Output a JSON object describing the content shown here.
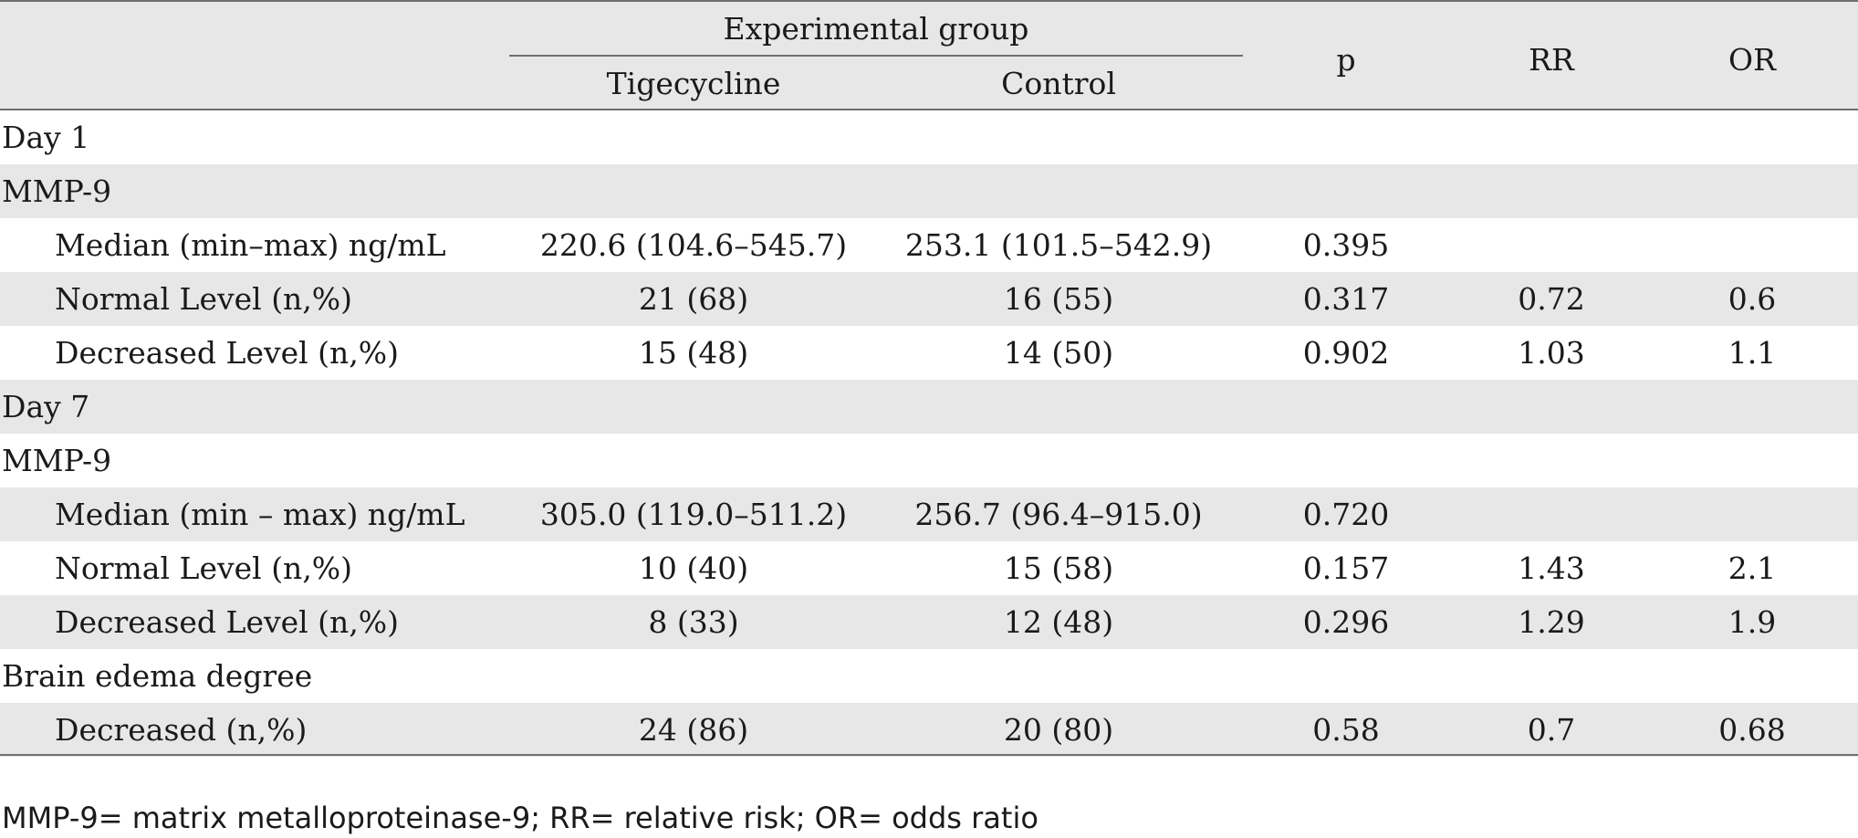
{
  "header": {
    "group_label": "Experimental group",
    "sub_tigecycline": "Tigecycline",
    "sub_control": "Control",
    "col_p": "p",
    "col_rr": "RR",
    "col_or": "OR"
  },
  "rows": [
    {
      "label": "Day 1",
      "indent": false,
      "tig": "",
      "ctl": "",
      "p": "",
      "rr": "",
      "or": ""
    },
    {
      "label": "MMP-9",
      "indent": false,
      "tig": "",
      "ctl": "",
      "p": "",
      "rr": "",
      "or": ""
    },
    {
      "label": "Median (min–max) ng/mL",
      "indent": true,
      "tig": "220.6 (104.6–545.7)",
      "ctl": "253.1 (101.5–542.9)",
      "p": "0.395",
      "rr": "",
      "or": ""
    },
    {
      "label": "Normal Level (n,%)",
      "indent": true,
      "tig": "21 (68)",
      "ctl": "16 (55)",
      "p": "0.317",
      "rr": "0.72",
      "or": "0.6"
    },
    {
      "label": "Decreased Level (n,%)",
      "indent": true,
      "tig": "15 (48)",
      "ctl": "14 (50)",
      "p": "0.902",
      "rr": "1.03",
      "or": "1.1"
    },
    {
      "label": "Day 7",
      "indent": false,
      "tig": "",
      "ctl": "",
      "p": "",
      "rr": "",
      "or": ""
    },
    {
      "label": "MMP-9",
      "indent": false,
      "tig": "",
      "ctl": "",
      "p": "",
      "rr": "",
      "or": ""
    },
    {
      "label": "Median (min – max) ng/mL",
      "indent": true,
      "tig": "305.0 (119.0–511.2)",
      "ctl": "256.7 (96.4–915.0)",
      "p": "0.720",
      "rr": "",
      "or": ""
    },
    {
      "label": "Normal Level (n,%)",
      "indent": true,
      "tig": "10 (40)",
      "ctl": "15 (58)",
      "p": "0.157",
      "rr": "1.43",
      "or": "2.1"
    },
    {
      "label": "Decreased Level (n,%)",
      "indent": true,
      "tig": "8 (33)",
      "ctl": "12 (48)",
      "p": "0.296",
      "rr": "1.29",
      "or": "1.9"
    },
    {
      "label": "Brain edema degree",
      "indent": false,
      "tig": "",
      "ctl": "",
      "p": "",
      "rr": "",
      "or": ""
    },
    {
      "label": "Decreased (n,%)",
      "indent": true,
      "tig": "24 (86)",
      "ctl": "20 (80)",
      "p": "0.58",
      "rr": "0.7",
      "or": "0.68"
    }
  ],
  "footnote": "MMP-9= matrix metalloproteinase-9; RR= relative risk; OR= odds ratio"
}
